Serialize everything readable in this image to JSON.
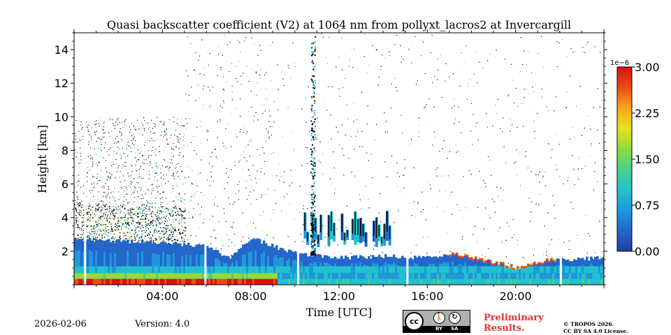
{
  "chart_data": {
    "type": "heatmap",
    "title": "Quasi backscatter coefficient (V2) at 1064 nm from pollyxt_lacros2 at Invercargill",
    "xlabel": "Time [UTC]",
    "ylabel": "Height [km]",
    "xlim_hours": [
      0,
      24
    ],
    "ylim_km": [
      0,
      15
    ],
    "x_ticks": [
      {
        "value": 4,
        "label": "04:00"
      },
      {
        "value": 8,
        "label": "08:00"
      },
      {
        "value": 12,
        "label": "12:00"
      },
      {
        "value": 16,
        "label": "16:00"
      },
      {
        "value": 20,
        "label": "20:00"
      }
    ],
    "y_ticks": [
      {
        "value": 2,
        "label": "2"
      },
      {
        "value": 4,
        "label": "4"
      },
      {
        "value": 6,
        "label": "6"
      },
      {
        "value": 8,
        "label": "8"
      },
      {
        "value": 10,
        "label": "10"
      },
      {
        "value": 12,
        "label": "12"
      },
      {
        "value": 14,
        "label": "14"
      }
    ],
    "colorbar": {
      "label_exponent": "1e−6",
      "range": [
        0,
        3
      ],
      "ticks": [
        {
          "value": 0,
          "label": "0.00"
        },
        {
          "value": 0.75,
          "label": "0.75"
        },
        {
          "value": 1.5,
          "label": "1.50"
        },
        {
          "value": 2.25,
          "label": "2.25"
        },
        {
          "value": 3.0,
          "label": "3.00"
        }
      ],
      "colors": [
        "#1f3fa0",
        "#2466c9",
        "#1e98d9",
        "#23c1cf",
        "#49cf8f",
        "#8fdc3c",
        "#e7e320",
        "#f6a51c",
        "#ec4b19",
        "#d8120f"
      ]
    },
    "data_gaps_hours": [
      0.5,
      5.95,
      10.15,
      15.1,
      22.05
    ],
    "layers": [
      {
        "name": "boundary layer",
        "start": 0,
        "end": 24,
        "top_km_profile": [
          [
            0,
            2.7
          ],
          [
            2,
            2.6
          ],
          [
            4,
            2.5
          ],
          [
            6,
            2.3
          ],
          [
            7,
            1.6
          ],
          [
            8,
            2.8
          ],
          [
            9.2,
            2.2
          ],
          [
            10.2,
            1.8
          ],
          [
            12,
            1.6
          ],
          [
            14,
            1.7
          ],
          [
            16,
            1.6
          ],
          [
            17.3,
            1.8
          ],
          [
            18.7,
            1.3
          ],
          [
            19.4,
            1.2
          ],
          [
            20,
            1.0
          ],
          [
            21.5,
            1.4
          ],
          [
            22,
            1.5
          ],
          [
            24,
            1.6
          ]
        ]
      },
      {
        "name": "elevated cloud",
        "start": 10.4,
        "end": 15.0,
        "bottom_km": 2.2,
        "top_km": 4.3
      },
      {
        "name": "aerosol plume",
        "start": 10.7,
        "end": 10.9,
        "bottom_km": 1.8,
        "top_km": 15.0
      },
      {
        "name": "surface layer",
        "start": 0,
        "end": 9.2,
        "bottom_km": 0,
        "top_km": 0.4
      }
    ]
  },
  "footer": {
    "date": "2026-02-06",
    "version": "Version: 4.0",
    "preliminary": [
      "Preliminary",
      "Results."
    ],
    "copyright": [
      "© TROPOS 2026.",
      "CC BY SA 4.0 License."
    ],
    "license_badge": {
      "by": "BY",
      "sa": "SA",
      "cc": "cc"
    }
  }
}
